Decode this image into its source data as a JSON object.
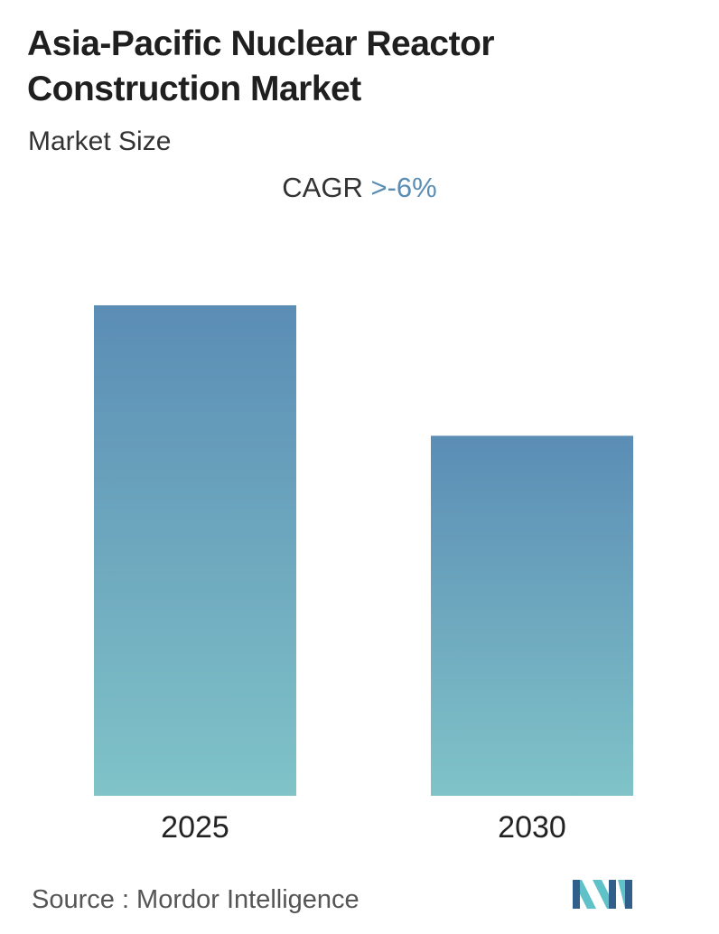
{
  "header": {
    "title": "Asia-Pacific Nuclear Reactor Construction Market",
    "subtitle": "Market Size"
  },
  "cagr": {
    "label": "CAGR",
    "value": ">-6%",
    "value_color": "#5b8db3"
  },
  "chart_data": {
    "type": "bar",
    "categories": [
      "2025",
      "2030"
    ],
    "values": [
      1.0,
      0.734
    ],
    "ylim": [
      0,
      1.0
    ],
    "grid": false,
    "bar_gradient": [
      "#5b8db5",
      "#80c3c8"
    ]
  },
  "footer": {
    "source": "Source :  Mordor Intelligence",
    "logo": "mordor-intelligence-logo",
    "logo_colors": [
      "#2f5f8a",
      "#5fc2c9"
    ]
  }
}
